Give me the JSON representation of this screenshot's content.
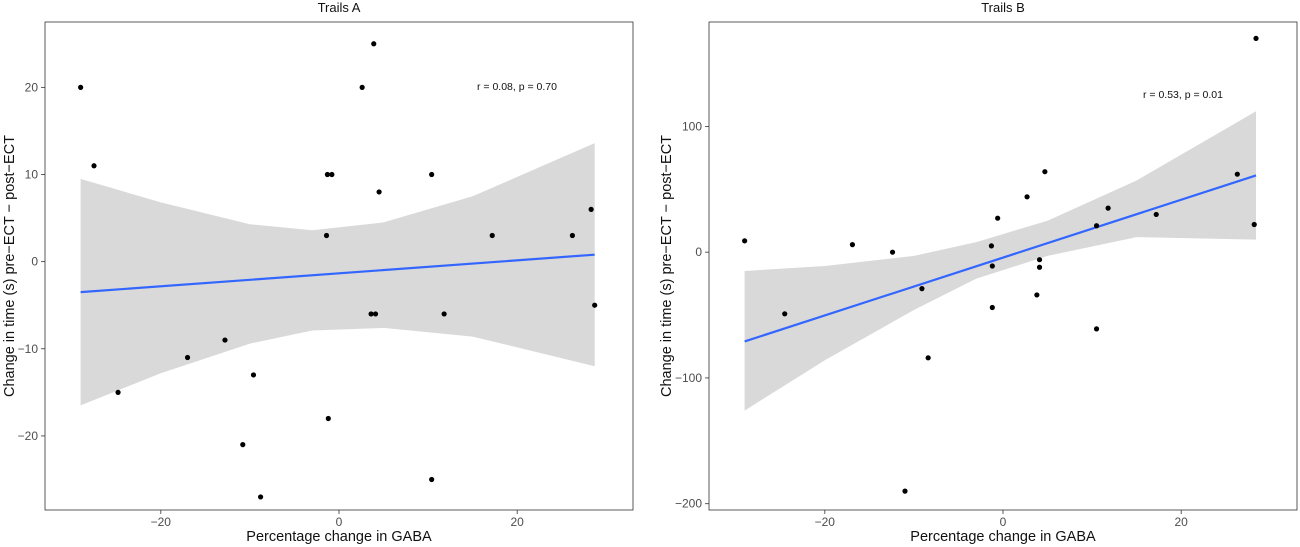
{
  "chart_data": [
    {
      "type": "scatter",
      "title": "Trails A",
      "xlabel": "Percentage change in GABA",
      "ylabel": "Change in time (s) pre−ECT − post−ECT",
      "xlim": [
        -33,
        33
      ],
      "ylim": [
        -28.5,
        27.5
      ],
      "xticks": [
        -20,
        0,
        20
      ],
      "yticks": [
        -20,
        -10,
        0,
        10,
        20
      ],
      "xtick_labels": [
        "−20",
        "0",
        "20"
      ],
      "ytick_labels": [
        "−20",
        "−10",
        "0",
        "10",
        "20"
      ],
      "annotation": "r = 0.08, p = 0.70",
      "point_color": "#000000",
      "line_color": "#3366ff",
      "band_color": "#d9d9d9",
      "points": [
        {
          "x": -29.0,
          "y": 20
        },
        {
          "x": -27.5,
          "y": 11
        },
        {
          "x": -24.8,
          "y": -15
        },
        {
          "x": -17.0,
          "y": -11
        },
        {
          "x": -12.8,
          "y": -9
        },
        {
          "x": -10.8,
          "y": -21
        },
        {
          "x": -9.6,
          "y": -13
        },
        {
          "x": -8.8,
          "y": -27
        },
        {
          "x": -1.4,
          "y": 3
        },
        {
          "x": -1.3,
          "y": 10
        },
        {
          "x": -1.2,
          "y": -18
        },
        {
          "x": -0.8,
          "y": 10
        },
        {
          "x": 2.6,
          "y": 20
        },
        {
          "x": 3.6,
          "y": -6
        },
        {
          "x": 3.9,
          "y": 25
        },
        {
          "x": 4.1,
          "y": -6
        },
        {
          "x": 4.5,
          "y": 8
        },
        {
          "x": 10.4,
          "y": 10
        },
        {
          "x": 10.4,
          "y": -25
        },
        {
          "x": 11.8,
          "y": -6
        },
        {
          "x": 17.2,
          "y": 3
        },
        {
          "x": 26.2,
          "y": 3
        },
        {
          "x": 28.3,
          "y": 6
        },
        {
          "x": 28.7,
          "y": -5
        }
      ],
      "fit": {
        "x": [
          -29.0,
          28.7
        ],
        "y": [
          -3.5,
          0.8
        ]
      },
      "band": {
        "x": [
          -29.0,
          -20,
          -10,
          -3,
          5,
          15,
          28.7
        ],
        "upper": [
          9.5,
          6.8,
          4.3,
          3.6,
          4.5,
          7.5,
          13.6
        ],
        "lower": [
          -16.5,
          -12.8,
          -9.4,
          -7.9,
          -7.6,
          -8.6,
          -12.0
        ]
      }
    },
    {
      "type": "scatter",
      "title": "Trails B",
      "xlabel": "Percentage change in GABA",
      "ylabel": "Change in time (s) pre−ECT − post−ECT",
      "xlim": [
        -33,
        33
      ],
      "ylim": [
        -205,
        183
      ],
      "xticks": [
        -20,
        0,
        20
      ],
      "yticks": [
        -200,
        -100,
        0,
        100
      ],
      "xtick_labels": [
        "−20",
        "0",
        "20"
      ],
      "ytick_labels": [
        "−200",
        "−100",
        "0",
        "100"
      ],
      "annotation": "r = 0.53, p = 0.01",
      "point_color": "#000000",
      "line_color": "#3366ff",
      "band_color": "#d9d9d9",
      "points": [
        {
          "x": -29.0,
          "y": 9
        },
        {
          "x": -24.5,
          "y": -49
        },
        {
          "x": -16.9,
          "y": 6
        },
        {
          "x": -12.4,
          "y": 0
        },
        {
          "x": -11.0,
          "y": -190
        },
        {
          "x": -9.1,
          "y": -29
        },
        {
          "x": -8.4,
          "y": -84
        },
        {
          "x": -1.3,
          "y": 5
        },
        {
          "x": -1.2,
          "y": -11
        },
        {
          "x": -1.2,
          "y": -44
        },
        {
          "x": -0.6,
          "y": 27
        },
        {
          "x": 2.7,
          "y": 44
        },
        {
          "x": 3.8,
          "y": -34
        },
        {
          "x": 4.1,
          "y": -6
        },
        {
          "x": 4.1,
          "y": -12
        },
        {
          "x": 4.7,
          "y": 64
        },
        {
          "x": 10.5,
          "y": 21
        },
        {
          "x": 10.5,
          "y": -61
        },
        {
          "x": 11.8,
          "y": 35
        },
        {
          "x": 17.2,
          "y": 30
        },
        {
          "x": 26.3,
          "y": 62
        },
        {
          "x": 28.2,
          "y": 22
        },
        {
          "x": 28.4,
          "y": 170
        }
      ],
      "fit": {
        "x": [
          -29.0,
          28.4
        ],
        "y": [
          -71,
          61
        ]
      },
      "band": {
        "x": [
          -29.0,
          -20,
          -10,
          -3,
          5,
          15,
          28.4
        ],
        "upper": [
          -15,
          -11,
          -3,
          8,
          25,
          57,
          112
        ],
        "lower": [
          -126,
          -86,
          -46,
          -21,
          -3,
          12,
          10
        ]
      }
    }
  ]
}
